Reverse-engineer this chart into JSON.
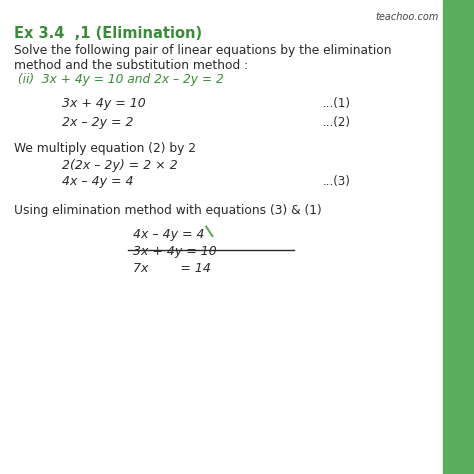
{
  "bg_color": "#ffffff",
  "green_bar_color": "#5aad5a",
  "title": "Ex 3.4  ,1 (Elimination)",
  "subtitle1": "Solve the following pair of linear equations by the elimination",
  "subtitle2": "method and the substitution method :",
  "problem": " (ii)  3x + 4y = 10 and 2x – 2y = 2",
  "eq1": "3x + 4y = 10",
  "eq1_label": "...(1)",
  "eq2": "2x – 2y = 2",
  "eq2_label": "...(2)",
  "step_text": "We multiply equation (2) by 2",
  "step1": "2(2x – 2y) = 2 × 2",
  "step2": "4x – 4y = 4",
  "step2_label": "...(3)",
  "elim_text": "Using elimination method with equations (3) & (1)",
  "elim_eq1": "4x – 4y = 4",
  "elim_eq2": "3x + 4y = 10",
  "elim_result": "7x        = 14",
  "watermark": "teachoo.com",
  "title_color": "#3a8c3a",
  "problem_color": "#3a8c3a",
  "text_color": "#2a2a2a",
  "watermark_color": "#444444"
}
